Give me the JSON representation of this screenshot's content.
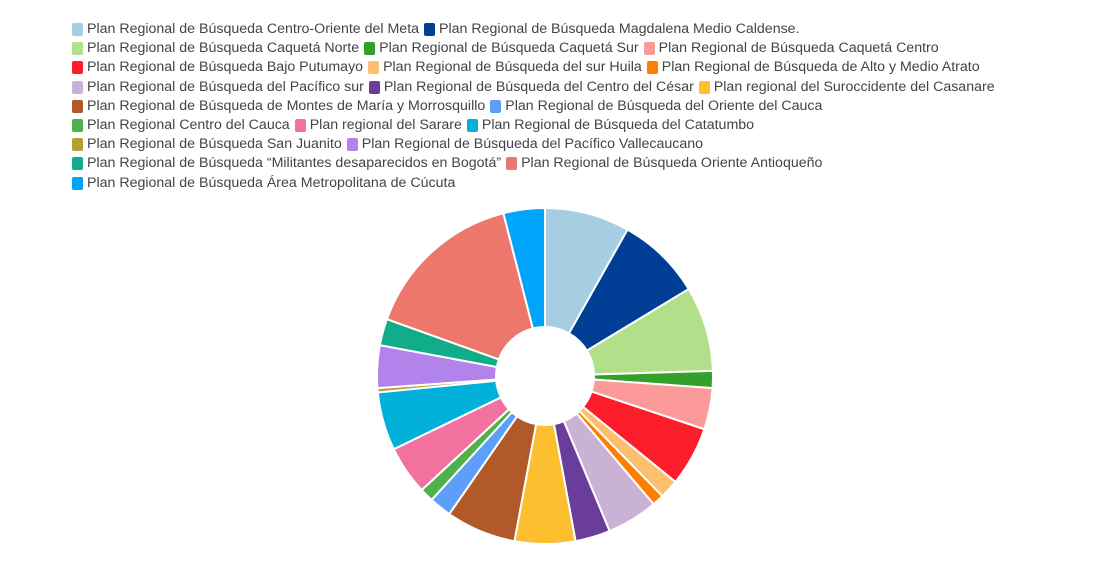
{
  "chart_data": {
    "type": "pie",
    "donut": true,
    "legend_position": "top-left",
    "series": [
      {
        "name": "Plan Regional de Búsqueda Centro-Oriente del Meta",
        "value": 8.0,
        "color": "#a6cee3"
      },
      {
        "name": "Plan Regional de Búsqueda Magdalena Medio Caldense.",
        "value": 8.0,
        "color": "#013e95"
      },
      {
        "name": "Plan Regional de Búsqueda Caquetá Norte",
        "value": 8.0,
        "color": "#b2df8a"
      },
      {
        "name": "Plan Regional de Búsqueda Caquetá Sur",
        "value": 1.6,
        "color": "#33a02c"
      },
      {
        "name": "Plan Regional de Búsqueda Caquetá Centro",
        "value": 3.9,
        "color": "#fb9a99"
      },
      {
        "name": "Plan Regional de Búsqueda Bajo Putumayo",
        "value": 5.6,
        "color": "#fc1c2a"
      },
      {
        "name": "Plan Regional de Búsqueda del sur Huila",
        "value": 1.8,
        "color": "#fdbf6f"
      },
      {
        "name": "Plan Regional de Búsqueda de Alto y Medio Atrato",
        "value": 1.1,
        "color": "#fe7f00"
      },
      {
        "name": "Plan Regional de Búsqueda del Pacífico sur",
        "value": 4.8,
        "color": "#cab2d6"
      },
      {
        "name": "Plan Regional de Búsqueda del Centro del César",
        "value": 3.3,
        "color": "#6a3d9a"
      },
      {
        "name": "Plan regional del Suroccidente del Casanare",
        "value": 5.7,
        "color": "#fdbf2f"
      },
      {
        "name": "Plan Regional de Búsqueda de Montes de María y Morrosquillo",
        "value": 6.6,
        "color": "#b15928"
      },
      {
        "name": "Plan Regional de Búsqueda del Oriente del Cauca",
        "value": 2.1,
        "color": "#5d9ef9"
      },
      {
        "name": "Plan Regional Centro del Cauca",
        "value": 1.3,
        "color": "#4fb149"
      },
      {
        "name": "Plan regional del Sarare",
        "value": 4.6,
        "color": "#f3719e"
      },
      {
        "name": "Plan Regional de Búsqueda del Catatumbo",
        "value": 5.5,
        "color": "#02b1da"
      },
      {
        "name": "Plan Regional de Búsqueda San Juanito",
        "value": 0.4,
        "color": "#b4a032"
      },
      {
        "name": "Plan Regional de Búsqueda del Pacífico Vallecaucano",
        "value": 4.0,
        "color": "#b283ea"
      },
      {
        "name": "Plan Regional de Búsqueda “Militantes desaparecidos en Bogotá”",
        "value": 2.5,
        "color": "#11ad8b"
      },
      {
        "name": "Plan Regional de Búsqueda Oriente Antioqueño",
        "value": 15.2,
        "color": "#ed776a"
      },
      {
        "name": "Plan Regional de Búsqueda Área Metropolitana de Cúcuta",
        "value": 3.9,
        "color": "#00a5fb"
      }
    ]
  }
}
